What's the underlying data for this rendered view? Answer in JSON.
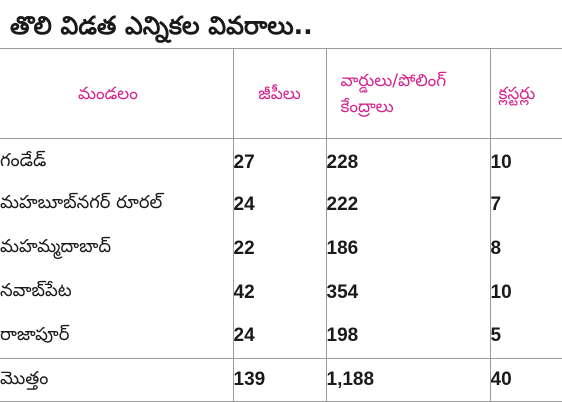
{
  "title": "తొలి విడత ఎన్నికల వివరాలు..",
  "table": {
    "headers": [
      "మండలం",
      "జీపీలు",
      "వార్డులు/పోలింగ్ కేంద్రాలు",
      "క్లస్టర్లు"
    ],
    "rows": [
      {
        "mandal": "గండేడ్",
        "gps": "27",
        "wards": "228",
        "clusters": "10"
      },
      {
        "mandal": "మహబూబ్‌నగర్ రూరల్",
        "gps": "24",
        "wards": "222",
        "clusters": "7"
      },
      {
        "mandal": "మహమ్మదాబాద్",
        "gps": "22",
        "wards": "186",
        "clusters": "8"
      },
      {
        "mandal": "నవాబ్‌పేట",
        "gps": "42",
        "wards": "354",
        "clusters": "10"
      },
      {
        "mandal": "రాజాపూర్",
        "gps": "24",
        "wards": "198",
        "clusters": "5"
      }
    ],
    "total": {
      "label": "మొత్తం",
      "gps": "139",
      "wards": "1,188",
      "clusters": "40"
    }
  }
}
